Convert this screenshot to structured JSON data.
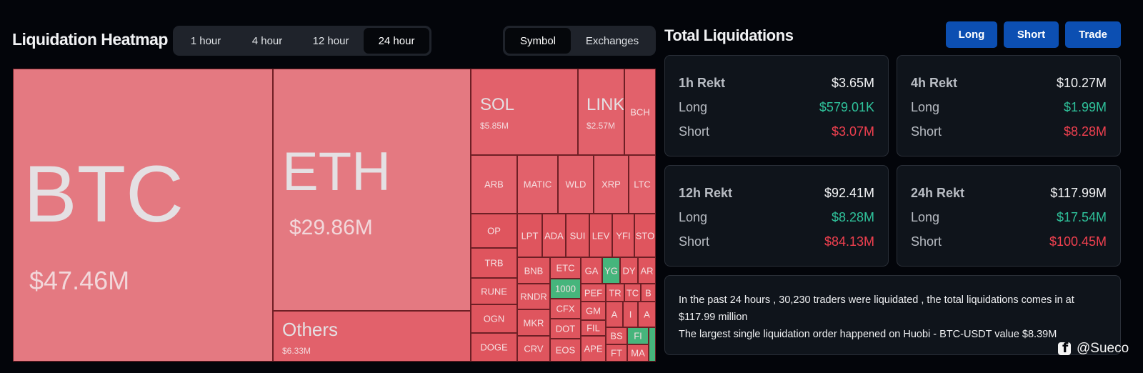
{
  "heatmap": {
    "title": "Liquidation Heatmap",
    "time_tabs": [
      {
        "label": "1 hour",
        "active": false
      },
      {
        "label": "4 hour",
        "active": false
      },
      {
        "label": "12 hour",
        "active": false
      },
      {
        "label": "24 hour",
        "active": true
      }
    ],
    "view_tabs": [
      {
        "label": "Symbol",
        "active": true
      },
      {
        "label": "Exchanges",
        "active": false
      }
    ],
    "major": {
      "btc": {
        "symbol": "BTC",
        "value": "$47.46M"
      },
      "eth": {
        "symbol": "ETH",
        "value": "$29.86M"
      },
      "others": {
        "symbol": "Others",
        "value": "$6.33M"
      },
      "sol": {
        "symbol": "SOL",
        "value": "$5.85M"
      },
      "link": {
        "symbol": "LINK",
        "value": "$2.57M"
      }
    },
    "tiles": [
      "BCH",
      "ARB",
      "MATIC",
      "WLD",
      "XRP",
      "LTC",
      "OP",
      "LPT",
      "ADA",
      "SUI",
      "LEV",
      "YFI",
      "STO",
      "TRB",
      "BNB",
      "ETC",
      "GA",
      "YG",
      "DY",
      "AR",
      "RUNE",
      "RNDR",
      "1000",
      "PEF",
      "TR",
      "TC",
      "B",
      "OGN",
      "MKR",
      "CFX",
      "GM",
      "A",
      "I",
      "A",
      "DOT",
      "FIL",
      "DOGE",
      "CRV",
      "EOS",
      "APE",
      "BS",
      "FT",
      "FI",
      "MA"
    ]
  },
  "colors": {
    "tile_large": "#e47981",
    "tile_mid": "#e2616b",
    "tile_small": "#df555e",
    "tile_green": "#46b57c",
    "long": "#2fc29b",
    "short": "#f0404f",
    "button": "#0c4fb2"
  },
  "totals": {
    "title": "Total Liquidations",
    "buttons": {
      "long": "Long",
      "short": "Short",
      "trade": "Trade"
    },
    "cards": [
      {
        "period": "1h Rekt",
        "total": "$3.65M",
        "long_label": "Long",
        "long": "$579.01K",
        "short_label": "Short",
        "short": "$3.07M"
      },
      {
        "period": "4h Rekt",
        "total": "$10.27M",
        "long_label": "Long",
        "long": "$1.99M",
        "short_label": "Short",
        "short": "$8.28M"
      },
      {
        "period": "12h Rekt",
        "total": "$92.41M",
        "long_label": "Long",
        "long": "$8.28M",
        "short_label": "Short",
        "short": "$84.13M"
      },
      {
        "period": "24h Rekt",
        "total": "$117.99M",
        "long_label": "Long",
        "long": "$17.54M",
        "short_label": "Short",
        "short": "$100.45M"
      }
    ],
    "summary_line1": "In the past 24 hours , 30,230 traders were liquidated , the total liquidations comes in at $117.99 million",
    "summary_line2": "The largest single liquidation order happened on Huobi - BTC-USDT value $8.39M"
  },
  "credit": {
    "handle": "@Sueco",
    "icon": "facebook-icon"
  }
}
